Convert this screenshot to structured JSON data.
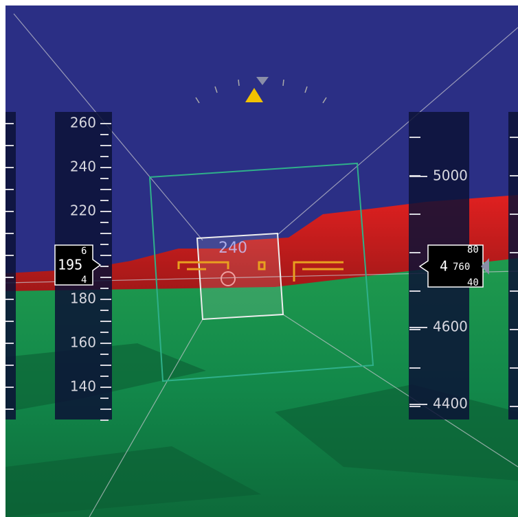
{
  "speed_tape": {
    "labels": [
      "260",
      "240",
      "220",
      "180",
      "160",
      "140"
    ],
    "readout": "195",
    "roller_above": "6",
    "roller_below": "4"
  },
  "altitude_tape": {
    "labels": [
      "5000",
      "4600",
      "4400"
    ],
    "readout_thousands": "4",
    "readout_hundreds": "760",
    "roller_above": "80",
    "roller_below": "40"
  },
  "heading": "240"
}
